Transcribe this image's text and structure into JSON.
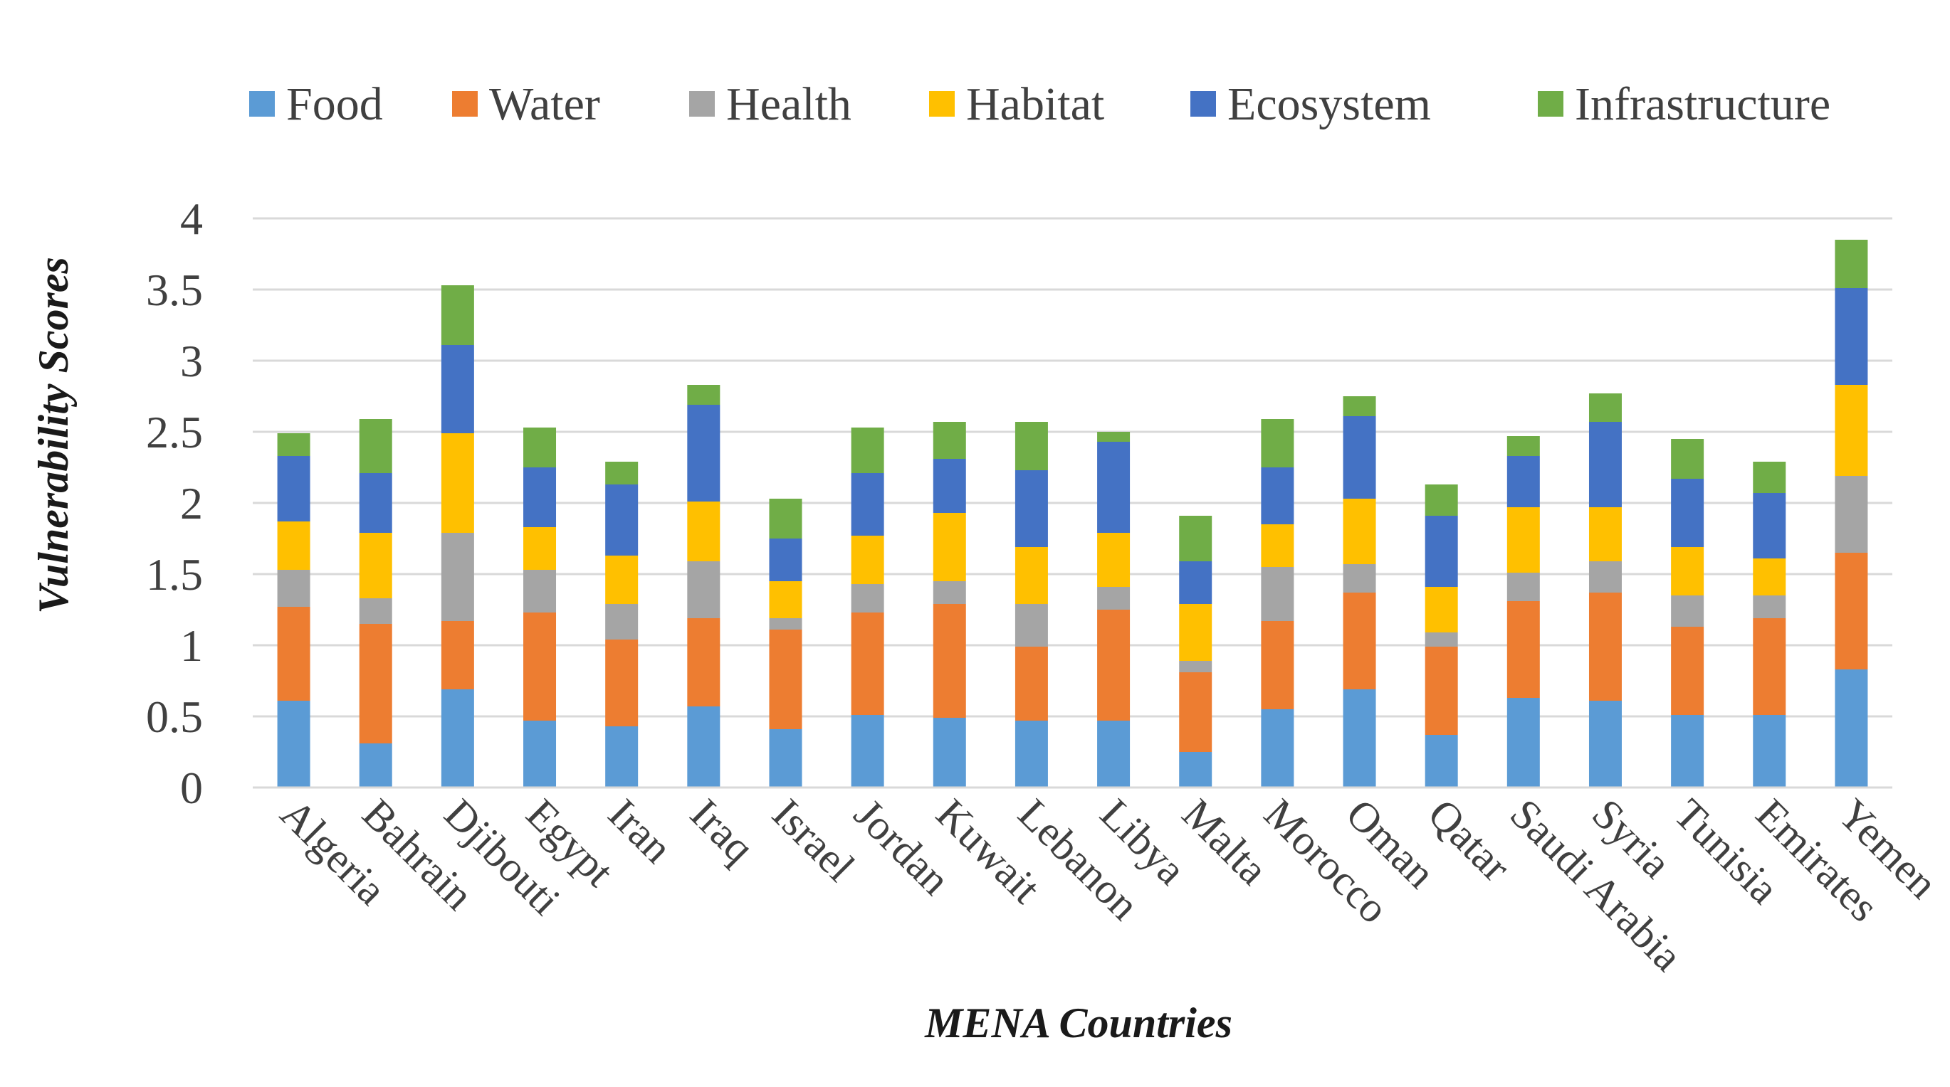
{
  "chart_data": {
    "type": "bar",
    "stacked": true,
    "title": "",
    "xlabel": "MENA Countries",
    "ylabel": "Vulnerability Scores",
    "ylim": [
      0,
      4
    ],
    "yticks": [
      0,
      0.5,
      1,
      1.5,
      2,
      2.5,
      3,
      3.5,
      4
    ],
    "ytick_labels": [
      "0",
      "0.5",
      "1",
      "1.5",
      "2",
      "2.5",
      "3",
      "3.5",
      "4"
    ],
    "grid": "horizontal",
    "legend_position": "top",
    "categories": [
      "Algeria",
      "Bahrain",
      "Djibouti",
      "Egypt",
      "Iran",
      "Iraq",
      "Israel",
      "Jordan",
      "Kuwait",
      "Lebanon",
      "Libya",
      "Malta",
      "Morocco",
      "Oman",
      "Qatar",
      "Saudi Arabia",
      "Syria",
      "Tunisia",
      "Emirates",
      "Yemen"
    ],
    "series": [
      {
        "name": "Food",
        "color": "#5b9bd5",
        "values": [
          0.61,
          0.31,
          0.69,
          0.47,
          0.43,
          0.57,
          0.41,
          0.51,
          0.49,
          0.47,
          0.47,
          0.25,
          0.55,
          0.69,
          0.37,
          0.63,
          0.61,
          0.51,
          0.51,
          0.83
        ]
      },
      {
        "name": "Water",
        "color": "#ed7d31",
        "values": [
          0.66,
          0.84,
          0.48,
          0.76,
          0.61,
          0.62,
          0.7,
          0.72,
          0.8,
          0.52,
          0.78,
          0.56,
          0.62,
          0.68,
          0.62,
          0.68,
          0.76,
          0.62,
          0.68,
          0.82
        ]
      },
      {
        "name": "Health",
        "color": "#a5a5a5",
        "values": [
          0.26,
          0.18,
          0.62,
          0.3,
          0.25,
          0.4,
          0.08,
          0.2,
          0.16,
          0.3,
          0.16,
          0.08,
          0.38,
          0.2,
          0.1,
          0.2,
          0.22,
          0.22,
          0.16,
          0.54
        ]
      },
      {
        "name": "Habitat",
        "color": "#ffc000",
        "values": [
          0.34,
          0.46,
          0.7,
          0.3,
          0.34,
          0.42,
          0.26,
          0.34,
          0.48,
          0.4,
          0.38,
          0.4,
          0.3,
          0.46,
          0.32,
          0.46,
          0.38,
          0.34,
          0.26,
          0.64
        ]
      },
      {
        "name": "Ecosystem",
        "color": "#4472c4",
        "values": [
          0.46,
          0.42,
          0.62,
          0.42,
          0.5,
          0.68,
          0.3,
          0.44,
          0.38,
          0.54,
          0.64,
          0.3,
          0.4,
          0.58,
          0.5,
          0.36,
          0.6,
          0.48,
          0.46,
          0.68
        ]
      },
      {
        "name": "Infrastructure",
        "color": "#70ad47",
        "values": [
          0.16,
          0.38,
          0.42,
          0.28,
          0.16,
          0.14,
          0.28,
          0.32,
          0.26,
          0.34,
          0.07,
          0.32,
          0.34,
          0.14,
          0.22,
          0.14,
          0.2,
          0.28,
          0.22,
          0.34
        ]
      }
    ]
  }
}
